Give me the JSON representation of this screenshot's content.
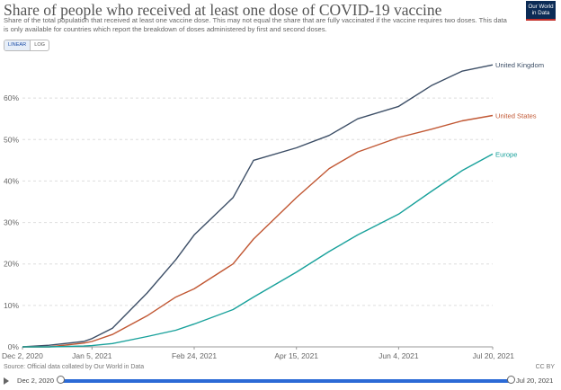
{
  "header": {
    "title": "Share of people who received at least one dose of COVID-19 vaccine",
    "subtitle": "Share of the total population that received at least one vaccine dose. This may not equal the share that are fully vaccinated if the vaccine requires two doses. This data is only available for countries which report the breakdown of doses administered by first and second doses.",
    "logo_line1": "Our World",
    "logo_line2": "in Data"
  },
  "controls": {
    "linear_label": "LINEAR",
    "log_label": "LOG",
    "active": "linear"
  },
  "footer": {
    "source": "Source: Official data collated by Our World in Data",
    "license": "CC BY",
    "slider_start": "Dec 2, 2020",
    "slider_end": "Jul 20, 2021"
  },
  "colors": {
    "United Kingdom": "#3c4e66",
    "United States": "#c15733",
    "Europe": "#18a19b",
    "grid": "#dddddd"
  },
  "chart_data": {
    "type": "line",
    "title": "Share of people who received at least one dose of COVID-19 vaccine",
    "xlabel": "",
    "ylabel": "",
    "x_ticks": [
      "Dec 2, 2020",
      "Jan 5, 2021",
      "Feb 24, 2021",
      "Apr 15, 2021",
      "Jun 4, 2021",
      "Jul 20, 2021"
    ],
    "y_ticks": [
      "0%",
      "10%",
      "20%",
      "30%",
      "40%",
      "50%",
      "60%"
    ],
    "ylim": [
      0,
      70
    ],
    "grid": "horizontal-dashed",
    "legend": "line-end labels",
    "x": [
      "2020-12-02",
      "2020-12-15",
      "2021-01-01",
      "2021-01-05",
      "2021-01-15",
      "2021-02-01",
      "2021-02-15",
      "2021-02-24",
      "2021-03-15",
      "2021-03-25",
      "2021-04-15",
      "2021-05-01",
      "2021-05-15",
      "2021-06-04",
      "2021-06-20",
      "2021-07-05",
      "2021-07-20"
    ],
    "series": [
      {
        "name": "United Kingdom",
        "values": [
          0,
          0.4,
          1.3,
          2.0,
          4.5,
          13,
          21,
          27,
          36,
          45,
          48,
          51,
          55,
          58,
          63,
          66.5,
          68
        ]
      },
      {
        "name": "United States",
        "values": [
          0,
          0,
          0.9,
          1.3,
          3.0,
          7.5,
          12,
          14,
          20,
          26,
          36,
          43,
          47,
          50.5,
          52.5,
          54.5,
          55.8
        ]
      },
      {
        "name": "Europe",
        "values": [
          0,
          0,
          0.2,
          0.3,
          0.8,
          2.5,
          4.0,
          5.5,
          9,
          12,
          18,
          23,
          27,
          32,
          37.5,
          42.5,
          46.5
        ]
      }
    ]
  }
}
